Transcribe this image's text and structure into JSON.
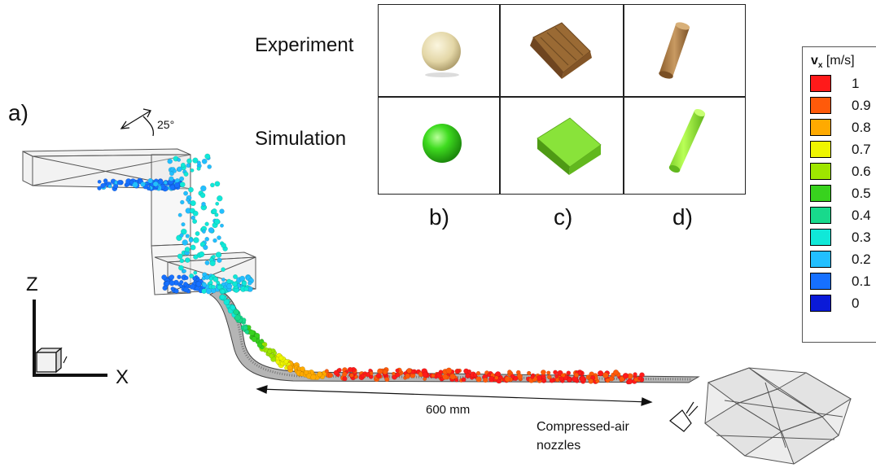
{
  "labels": {
    "panel_a": "a)",
    "panel_b": "b)",
    "panel_c": "c)",
    "panel_d": "d)",
    "row_experiment": "Experiment",
    "row_simulation": "Simulation",
    "angle": "25°",
    "axis_z": "Z",
    "axis_x": "X",
    "length": "600 mm",
    "nozzles": "Compressed-air nozzles"
  },
  "legend": {
    "title_symbol": "v",
    "title_sub": "x",
    "title_unit": " [m/s]",
    "entries": [
      {
        "label": "1",
        "color": "#ff1a1a"
      },
      {
        "label": "0.9",
        "color": "#ff5a0a"
      },
      {
        "label": "0.8",
        "color": "#ffaa00"
      },
      {
        "label": "0.7",
        "color": "#eef500"
      },
      {
        "label": "0.6",
        "color": "#9ee600"
      },
      {
        "label": "0.5",
        "color": "#38d21e"
      },
      {
        "label": "0.4",
        "color": "#18d98c"
      },
      {
        "label": "0.3",
        "color": "#10e8d8"
      },
      {
        "label": "0.2",
        "color": "#22bfff"
      },
      {
        "label": "0.1",
        "color": "#1670ff"
      },
      {
        "label": "0",
        "color": "#0a1ad8"
      }
    ]
  },
  "colors": {
    "sphere_green": "#3fdc20",
    "wood_light": "#e6dcb4",
    "wood_dark": "#a7783f"
  }
}
